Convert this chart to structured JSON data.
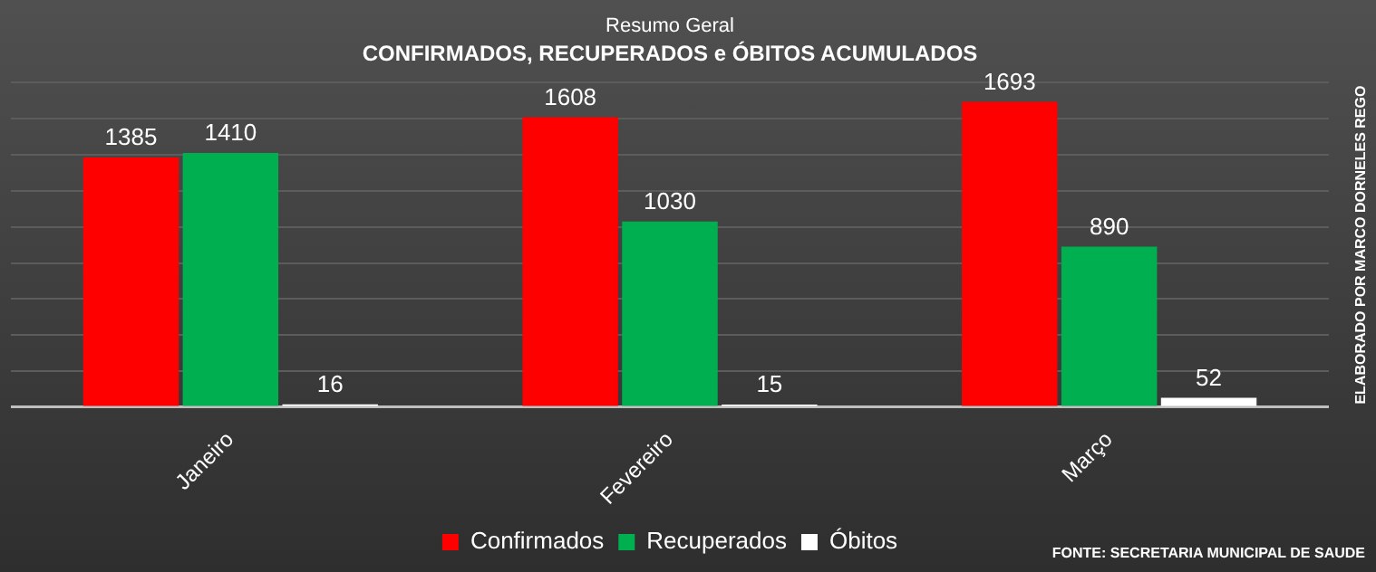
{
  "chart_data": {
    "type": "bar",
    "title": "Resumo Geral",
    "subtitle": "CONFIRMADOS, RECUPERADOS e ÓBITOS ACUMULADOS",
    "categories": [
      "Janeiro",
      "Fevereiro",
      "Março"
    ],
    "series": [
      {
        "name": "Confirmados",
        "color": "#ff0000",
        "values": [
          1385,
          1608,
          1693
        ]
      },
      {
        "name": "Recuperados",
        "color": "#00b050",
        "values": [
          1410,
          1030,
          890
        ]
      },
      {
        "name": "Óbitos",
        "color": "#ffffff",
        "values": [
          16,
          15,
          52
        ]
      }
    ],
    "ylim": [
      0,
      1800
    ],
    "yticks": [
      {
        "value": 0,
        "label": null
      },
      {
        "value": 200,
        "label": null
      },
      {
        "value": 400,
        "label": null
      },
      {
        "value": 600,
        "label": null
      },
      {
        "value": 800,
        "label": null
      },
      {
        "value": 1000,
        "label": null
      },
      {
        "value": 1200,
        "label": null
      },
      {
        "value": 1400,
        "label": null
      },
      {
        "value": 1600,
        "label": null
      },
      {
        "value": 1800,
        "label": null
      }
    ],
    "tick_labels": "x",
    "grid": "y",
    "legend": "bottom",
    "data_labels": true,
    "annotations": [
      "ELABORADO POR MARCO DORNELES REGO",
      "FONTE: SECRETARIA MUNICIPAL DE SAUDE"
    ]
  }
}
